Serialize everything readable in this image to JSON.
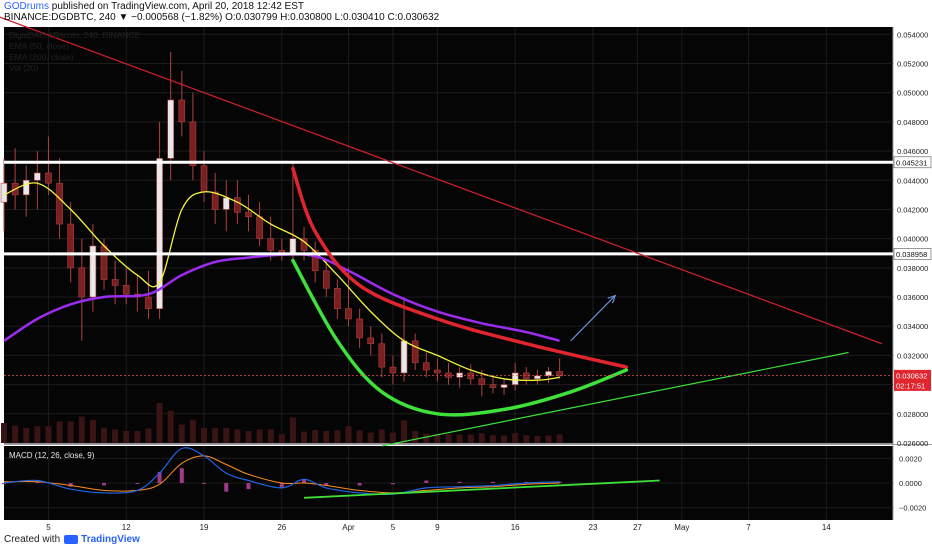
{
  "header": {
    "publisher": "GODrums",
    "published_text": "published on TradingView.com, April 20, 2018 12:42 EST",
    "quote_line": "BINANCE:DGDBTC, 240  ▼ −0.000568 (−1.82%)  O:0.030799  H:0.030800  L:0.030410  C:0.030632"
  },
  "legend": {
    "symbol_line": "DigixDAO / Bitcoin, 240, BINANCE",
    "indicators": [
      "EMA (50, close)",
      "EMA (200, close)",
      "Vol (20)"
    ],
    "macd_label": "MACD (12, 26, close, 9)"
  },
  "footer": {
    "created_with": "Created with",
    "brand": "TradingView"
  },
  "colors": {
    "candle": "#7a2020",
    "ema50": "#f5f542",
    "ema200": "#9b2cf0",
    "trend_red": "#e0252f",
    "curve_green": "#3fe03a",
    "support_white": "#ffffff",
    "macd_line": "#1e64e6",
    "signal_line": "#ff8c1e",
    "arrow": "#6b8fd4",
    "bg": "#050505"
  },
  "chart_data": {
    "type": "candlestick",
    "title": "DigixDAO / Bitcoin, 240, BINANCE",
    "x_ticks": [
      "5",
      "12",
      "19",
      "26",
      "Apr",
      "5",
      "9",
      "16",
      "23",
      "27",
      "May",
      "7",
      "14"
    ],
    "x_tick_days": [
      5,
      12,
      19,
      26,
      32,
      36,
      40,
      47,
      54,
      58,
      62,
      68,
      75
    ],
    "xlim_days": [
      1,
      81
    ],
    "y_ticks": [
      0.026,
      0.028,
      0.03,
      0.032,
      0.034,
      0.036,
      0.038,
      0.04,
      0.042,
      0.044,
      0.046,
      0.048,
      0.05,
      0.052,
      0.054
    ],
    "ylim": [
      0.026,
      0.0545
    ],
    "price_badges": [
      {
        "label": "0.045231",
        "value": 0.045231,
        "kind": "horizontal_line"
      },
      {
        "label": "0.038958",
        "value": 0.038958,
        "kind": "horizontal_line"
      },
      {
        "label": "0.030632",
        "value": 0.030632,
        "kind": "last_price"
      },
      {
        "label": "02:17:51",
        "value": 0.03,
        "kind": "countdown"
      }
    ],
    "ohlc_daily": [
      {
        "day": 1,
        "o": 0.0425,
        "h": 0.0455,
        "l": 0.0405,
        "c": 0.0438
      },
      {
        "day": 2,
        "o": 0.0438,
        "h": 0.0462,
        "l": 0.042,
        "c": 0.043
      },
      {
        "day": 3,
        "o": 0.043,
        "h": 0.045,
        "l": 0.0415,
        "c": 0.044
      },
      {
        "day": 4,
        "o": 0.044,
        "h": 0.046,
        "l": 0.042,
        "c": 0.0445
      },
      {
        "day": 5,
        "o": 0.0445,
        "h": 0.047,
        "l": 0.043,
        "c": 0.0438
      },
      {
        "day": 6,
        "o": 0.0438,
        "h": 0.0455,
        "l": 0.04,
        "c": 0.041
      },
      {
        "day": 7,
        "o": 0.041,
        "h": 0.0425,
        "l": 0.037,
        "c": 0.038
      },
      {
        "day": 8,
        "o": 0.038,
        "h": 0.04,
        "l": 0.033,
        "c": 0.036
      },
      {
        "day": 9,
        "o": 0.036,
        "h": 0.041,
        "l": 0.035,
        "c": 0.0395
      },
      {
        "day": 10,
        "o": 0.0395,
        "h": 0.04,
        "l": 0.0365,
        "c": 0.0372
      },
      {
        "day": 11,
        "o": 0.0372,
        "h": 0.0385,
        "l": 0.0355,
        "c": 0.0368
      },
      {
        "day": 12,
        "o": 0.0368,
        "h": 0.038,
        "l": 0.0355,
        "c": 0.0362
      },
      {
        "day": 13,
        "o": 0.0362,
        "h": 0.0375,
        "l": 0.035,
        "c": 0.036
      },
      {
        "day": 14,
        "o": 0.036,
        "h": 0.0378,
        "l": 0.0345,
        "c": 0.0352
      },
      {
        "day": 15,
        "o": 0.0352,
        "h": 0.048,
        "l": 0.0345,
        "c": 0.0455
      },
      {
        "day": 16,
        "o": 0.0455,
        "h": 0.0528,
        "l": 0.044,
        "c": 0.0495
      },
      {
        "day": 17,
        "o": 0.0495,
        "h": 0.0515,
        "l": 0.047,
        "c": 0.048
      },
      {
        "day": 18,
        "o": 0.048,
        "h": 0.05,
        "l": 0.044,
        "c": 0.045
      },
      {
        "day": 19,
        "o": 0.045,
        "h": 0.046,
        "l": 0.0425,
        "c": 0.0432
      },
      {
        "day": 20,
        "o": 0.0432,
        "h": 0.0445,
        "l": 0.041,
        "c": 0.042
      },
      {
        "day": 21,
        "o": 0.042,
        "h": 0.044,
        "l": 0.0405,
        "c": 0.0428
      },
      {
        "day": 22,
        "o": 0.0428,
        "h": 0.044,
        "l": 0.041,
        "c": 0.0418
      },
      {
        "day": 23,
        "o": 0.0418,
        "h": 0.043,
        "l": 0.0405,
        "c": 0.0415
      },
      {
        "day": 24,
        "o": 0.0415,
        "h": 0.0425,
        "l": 0.0395,
        "c": 0.04
      },
      {
        "day": 25,
        "o": 0.04,
        "h": 0.0415,
        "l": 0.0385,
        "c": 0.0392
      },
      {
        "day": 26,
        "o": 0.0392,
        "h": 0.04,
        "l": 0.0385,
        "c": 0.039
      },
      {
        "day": 27,
        "o": 0.039,
        "h": 0.0452,
        "l": 0.0385,
        "c": 0.04
      },
      {
        "day": 28,
        "o": 0.04,
        "h": 0.0408,
        "l": 0.0385,
        "c": 0.0392
      },
      {
        "day": 29,
        "o": 0.0392,
        "h": 0.0398,
        "l": 0.037,
        "c": 0.0378
      },
      {
        "day": 30,
        "o": 0.0378,
        "h": 0.0385,
        "l": 0.036,
        "c": 0.0366
      },
      {
        "day": 31,
        "o": 0.0366,
        "h": 0.0372,
        "l": 0.0345,
        "c": 0.0352
      },
      {
        "day": 32,
        "o": 0.0352,
        "h": 0.038,
        "l": 0.034,
        "c": 0.0345
      },
      {
        "day": 33,
        "o": 0.0345,
        "h": 0.0352,
        "l": 0.0325,
        "c": 0.0332
      },
      {
        "day": 34,
        "o": 0.0332,
        "h": 0.034,
        "l": 0.032,
        "c": 0.0328
      },
      {
        "day": 35,
        "o": 0.0328,
        "h": 0.0335,
        "l": 0.0305,
        "c": 0.0312
      },
      {
        "day": 36,
        "o": 0.0312,
        "h": 0.032,
        "l": 0.03,
        "c": 0.0308
      },
      {
        "day": 37,
        "o": 0.0308,
        "h": 0.036,
        "l": 0.0302,
        "c": 0.033
      },
      {
        "day": 38,
        "o": 0.033,
        "h": 0.0335,
        "l": 0.031,
        "c": 0.0315
      },
      {
        "day": 39,
        "o": 0.0315,
        "h": 0.0322,
        "l": 0.0305,
        "c": 0.031
      },
      {
        "day": 40,
        "o": 0.031,
        "h": 0.0318,
        "l": 0.0302,
        "c": 0.0308
      },
      {
        "day": 41,
        "o": 0.0308,
        "h": 0.0315,
        "l": 0.03,
        "c": 0.0305
      },
      {
        "day": 42,
        "o": 0.0305,
        "h": 0.0312,
        "l": 0.0298,
        "c": 0.0308
      },
      {
        "day": 43,
        "o": 0.0308,
        "h": 0.0314,
        "l": 0.03,
        "c": 0.0304
      },
      {
        "day": 44,
        "o": 0.0304,
        "h": 0.031,
        "l": 0.0292,
        "c": 0.03
      },
      {
        "day": 45,
        "o": 0.03,
        "h": 0.0306,
        "l": 0.0294,
        "c": 0.0298
      },
      {
        "day": 46,
        "o": 0.0298,
        "h": 0.0304,
        "l": 0.0293,
        "c": 0.03
      },
      {
        "day": 47,
        "o": 0.03,
        "h": 0.0315,
        "l": 0.0296,
        "c": 0.0308
      },
      {
        "day": 48,
        "o": 0.0308,
        "h": 0.0312,
        "l": 0.03,
        "c": 0.0304
      },
      {
        "day": 49,
        "o": 0.0304,
        "h": 0.031,
        "l": 0.03,
        "c": 0.0306
      },
      {
        "day": 50,
        "o": 0.0306,
        "h": 0.0312,
        "l": 0.0301,
        "c": 0.0309
      },
      {
        "day": 51,
        "o": 0.0309,
        "h": 0.0318,
        "l": 0.0304,
        "c": 0.0306
      }
    ],
    "ema50": [
      [
        1,
        0.043
      ],
      [
        4,
        0.0438
      ],
      [
        7,
        0.042
      ],
      [
        10,
        0.0395
      ],
      [
        13,
        0.0375
      ],
      [
        15,
        0.037
      ],
      [
        17,
        0.042
      ],
      [
        19,
        0.0432
      ],
      [
        22,
        0.0425
      ],
      [
        25,
        0.041
      ],
      [
        28,
        0.0398
      ],
      [
        31,
        0.0375
      ],
      [
        34,
        0.035
      ],
      [
        37,
        0.033
      ],
      [
        40,
        0.032
      ],
      [
        43,
        0.031
      ],
      [
        46,
        0.0304
      ],
      [
        49,
        0.0303
      ],
      [
        51,
        0.0305
      ]
    ],
    "ema200": [
      [
        1,
        0.033
      ],
      [
        4,
        0.0345
      ],
      [
        7,
        0.0355
      ],
      [
        10,
        0.036
      ],
      [
        14,
        0.0362
      ],
      [
        17,
        0.0375
      ],
      [
        20,
        0.0384
      ],
      [
        23,
        0.0387
      ],
      [
        26,
        0.0389
      ],
      [
        29,
        0.0388
      ],
      [
        32,
        0.0378
      ],
      [
        36,
        0.0362
      ],
      [
        40,
        0.035
      ],
      [
        44,
        0.0342
      ],
      [
        48,
        0.0336
      ],
      [
        51,
        0.033
      ]
    ],
    "macd": {
      "label": "MACD (12, 26, close, 9)",
      "y_ticks": [
        0.002,
        0.0,
        -0.002
      ],
      "ylim": [
        -0.003,
        0.003
      ],
      "macd_line": [
        [
          1,
          0.0
        ],
        [
          4,
          0.0002
        ],
        [
          7,
          -0.0005
        ],
        [
          10,
          -0.0008
        ],
        [
          13,
          -0.0006
        ],
        [
          15,
          0.0008
        ],
        [
          17,
          0.0028
        ],
        [
          19,
          0.0022
        ],
        [
          21,
          0.0008
        ],
        [
          23,
          0.0002
        ],
        [
          26,
          -0.0004
        ],
        [
          28,
          0.0003
        ],
        [
          30,
          -0.0004
        ],
        [
          33,
          -0.0008
        ],
        [
          36,
          -0.0009
        ],
        [
          39,
          -0.0004
        ],
        [
          42,
          -0.0003
        ],
        [
          45,
          -0.0002
        ],
        [
          48,
          0.0
        ],
        [
          51,
          0.0001
        ]
      ],
      "signal_line": [
        [
          1,
          0.0001
        ],
        [
          4,
          0.0001
        ],
        [
          7,
          -0.0002
        ],
        [
          10,
          -0.0006
        ],
        [
          13,
          -0.0006
        ],
        [
          15,
          -0.0001
        ],
        [
          17,
          0.0016
        ],
        [
          19,
          0.0022
        ],
        [
          21,
          0.0015
        ],
        [
          23,
          0.0007
        ],
        [
          26,
          0.0
        ],
        [
          28,
          0.0
        ],
        [
          30,
          -0.0002
        ],
        [
          33,
          -0.0006
        ],
        [
          36,
          -0.0008
        ],
        [
          39,
          -0.0006
        ],
        [
          42,
          -0.0004
        ],
        [
          45,
          -0.0003
        ],
        [
          48,
          -0.0001
        ],
        [
          51,
          0.0
        ]
      ]
    },
    "drawings": {
      "white_support_lines": [
        0.045231,
        0.038958
      ],
      "red_downtrend": [
        [
          -3,
          0.0562
        ],
        [
          80,
          0.0328
        ]
      ],
      "green_uptrend": [
        [
          35,
          0.0258
        ],
        [
          77,
          0.0322
        ]
      ],
      "macd_green_trend": [
        [
          28,
          -0.0012
        ],
        [
          60,
          0.0002
        ]
      ],
      "red_curve": [
        [
          27,
          0.0448
        ],
        [
          29,
          0.0405
        ],
        [
          33,
          0.0368
        ],
        [
          40,
          0.0345
        ],
        [
          48,
          0.0328
        ],
        [
          57,
          0.0312
        ]
      ],
      "green_curve": [
        [
          27,
          0.0385
        ],
        [
          31,
          0.033
        ],
        [
          35,
          0.0295
        ],
        [
          40,
          0.028
        ],
        [
          46,
          0.0283
        ],
        [
          52,
          0.0295
        ],
        [
          57,
          0.031
        ]
      ],
      "blue_arrow": [
        [
          52,
          0.033
        ],
        [
          56,
          0.0361
        ]
      ]
    }
  }
}
